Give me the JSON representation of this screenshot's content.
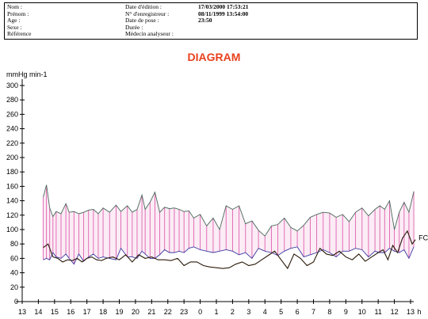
{
  "header": {
    "labels_left": [
      "Nom :",
      "Prénom :",
      "Age :",
      "Sexe :",
      "Référence"
    ],
    "labels_mid": [
      "Date d'édition :",
      "N° d'enregistreur :",
      "Date de pose :",
      "Durée :",
      "Médecin analyseur :"
    ],
    "values": [
      "17/03/2000 17:53:21",
      "",
      "08/11/1999 13:54:00",
      "23:50",
      ""
    ]
  },
  "title": "DIAGRAM",
  "colors": {
    "title": "#e8401c",
    "pressure_fill": "#e060b0",
    "systolic": "#4a6a5a",
    "diastolic": "#3a3aa0",
    "heart_rate": "#2a1a0a"
  },
  "chart_data": {
    "type": "line",
    "ylabel": "mmHg min-1",
    "xlabel": "h",
    "ylim": [
      0,
      300
    ],
    "yticks": [
      0,
      20,
      40,
      60,
      80,
      100,
      120,
      140,
      160,
      180,
      200,
      220,
      240,
      260,
      280,
      300
    ],
    "xticks": [
      "13",
      "14",
      "15",
      "16",
      "17",
      "18",
      "19",
      "20",
      "21",
      "22",
      "23",
      "0",
      "1",
      "2",
      "3",
      "4",
      "5",
      "6",
      "7",
      "8",
      "9",
      "10",
      "11",
      "12",
      "13"
    ],
    "x_start_hour": 13,
    "series": [
      {
        "name": "",
        "x": [
          14.3,
          14.5,
          14.7,
          14.9,
          15.1,
          15.4,
          15.7,
          15.9,
          16.2,
          16.5,
          16.8,
          17.1,
          17.4,
          17.7,
          18.0,
          18.4,
          18.8,
          19.1,
          19.5,
          19.8,
          20.1,
          20.4,
          20.6,
          20.9,
          21.2,
          21.5,
          21.8,
          22.1,
          22.4,
          22.7,
          23.0,
          23.3,
          23.6,
          24.0,
          24.4,
          24.8,
          25.2,
          25.6,
          26.0,
          26.4,
          26.8,
          27.2,
          27.6,
          28.0,
          28.4,
          28.8,
          29.2,
          29.6,
          30.0,
          30.4,
          30.8,
          31.2,
          31.6,
          32.0,
          32.4,
          32.8,
          33.2,
          33.6,
          34.0,
          34.4,
          34.8,
          35.1,
          35.4,
          35.7,
          36.0,
          36.3,
          36.6,
          36.9,
          37.2
        ],
        "values": [
          145,
          162,
          130,
          118,
          125,
          122,
          136,
          124,
          125,
          122,
          124,
          127,
          128,
          122,
          130,
          124,
          134,
          125,
          133,
          124,
          128,
          148,
          128,
          138,
          152,
          124,
          131,
          129,
          130,
          128,
          125,
          126,
          116,
          121,
          105,
          116,
          100,
          133,
          128,
          133,
          108,
          112,
          99,
          91,
          105,
          107,
          116,
          103,
          98,
          106,
          117,
          121,
          124,
          123,
          117,
          121,
          111,
          124,
          130,
          119,
          128,
          133,
          128,
          140,
          100,
          124,
          138,
          124,
          153
        ],
        "fill_to": 1
      },
      {
        "name": "",
        "x": [
          14.3,
          14.5,
          14.7,
          14.9,
          15.1,
          15.4,
          15.7,
          15.9,
          16.2,
          16.5,
          16.8,
          17.1,
          17.4,
          17.7,
          18.0,
          18.4,
          18.8,
          19.1,
          19.5,
          19.8,
          20.1,
          20.4,
          20.6,
          20.9,
          21.2,
          21.5,
          21.8,
          22.1,
          22.4,
          22.7,
          23.0,
          23.3,
          23.6,
          24.0,
          24.4,
          24.8,
          25.2,
          25.6,
          26.0,
          26.4,
          26.8,
          27.2,
          27.6,
          28.0,
          28.4,
          28.8,
          29.2,
          29.6,
          30.0,
          30.4,
          30.8,
          31.2,
          31.6,
          32.0,
          32.4,
          32.8,
          33.2,
          33.6,
          34.0,
          34.4,
          34.8,
          35.1,
          35.4,
          35.7,
          36.0,
          36.3,
          36.6,
          36.9,
          37.2
        ],
        "values": [
          58,
          60,
          58,
          68,
          62,
          60,
          66,
          60,
          52,
          66,
          56,
          62,
          66,
          60,
          62,
          60,
          58,
          74,
          62,
          62,
          60,
          70,
          66,
          60,
          60,
          65,
          72,
          68,
          68,
          70,
          68,
          74,
          76,
          72,
          70,
          68,
          70,
          72,
          70,
          65,
          68,
          60,
          74,
          70,
          68,
          64,
          70,
          74,
          76,
          62,
          65,
          68,
          72,
          68,
          62,
          70,
          70,
          74,
          72,
          62,
          70,
          68,
          68,
          74,
          70,
          68,
          72,
          60,
          76
        ]
      },
      {
        "name": "FC",
        "x": [
          14.3,
          14.6,
          14.9,
          15.2,
          15.5,
          15.8,
          16.1,
          16.4,
          16.7,
          17.0,
          17.3,
          17.6,
          17.9,
          18.2,
          18.6,
          19.0,
          19.4,
          19.8,
          20.2,
          20.6,
          21.0,
          21.4,
          21.8,
          22.2,
          22.6,
          23.0,
          23.4,
          23.8,
          24.2,
          24.6,
          25.0,
          25.4,
          25.8,
          26.2,
          26.6,
          27.0,
          27.4,
          27.8,
          28.2,
          28.6,
          29.0,
          29.4,
          29.8,
          30.2,
          30.6,
          31.0,
          31.4,
          31.8,
          32.2,
          32.6,
          33.0,
          33.4,
          33.8,
          34.2,
          34.6,
          35.0,
          35.3,
          35.6,
          35.9,
          36.2,
          36.5,
          36.8,
          37.1,
          37.3
        ],
        "values": [
          75,
          80,
          62,
          60,
          55,
          58,
          57,
          60,
          55,
          60,
          62,
          58,
          57,
          60,
          62,
          58,
          65,
          55,
          65,
          60,
          62,
          58,
          58,
          57,
          60,
          50,
          55,
          55,
          50,
          48,
          47,
          46,
          47,
          52,
          55,
          50,
          52,
          58,
          64,
          70,
          58,
          46,
          66,
          60,
          50,
          55,
          74,
          66,
          64,
          70,
          62,
          58,
          66,
          56,
          62,
          68,
          72,
          58,
          78,
          68,
          88,
          98,
          80,
          86
        ]
      }
    ],
    "annotations": [
      "FC"
    ]
  }
}
